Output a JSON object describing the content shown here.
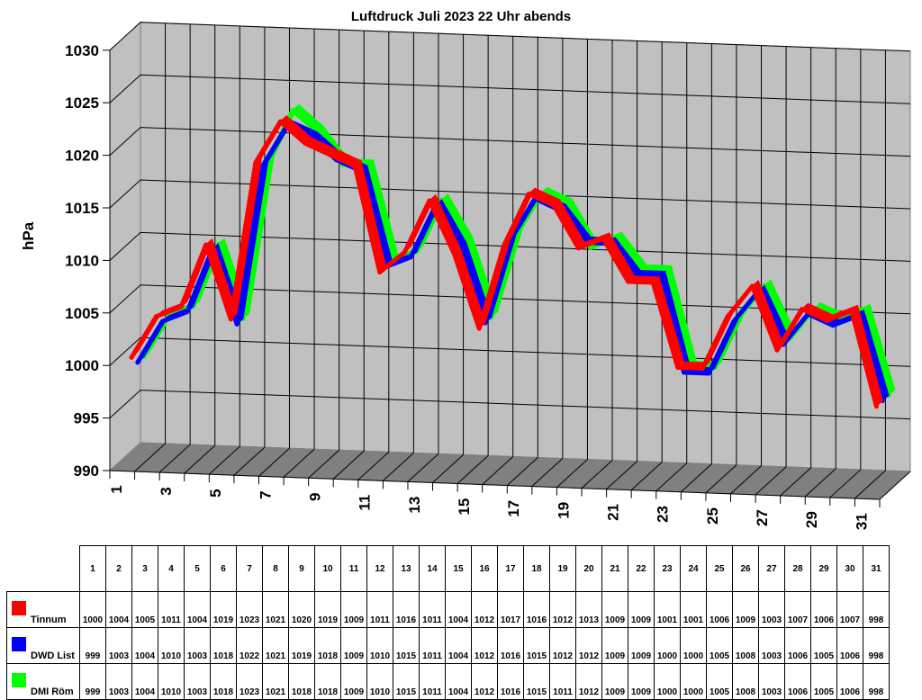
{
  "title": "Luftdruck Juli 2023 22 Uhr abends",
  "y_axis_label": "hPa",
  "colors": {
    "wall": "#c0c0c0",
    "floor": "#808080",
    "Tinnum": "#ff0000",
    "DWD List": "#0000ff",
    "DMI Röm": "#00ff00"
  },
  "table": {
    "header": [
      "1",
      "2",
      "3",
      "4",
      "5",
      "6",
      "7",
      "8",
      "9",
      "10",
      "11",
      "12",
      "13",
      "14",
      "15",
      "16",
      "17",
      "18",
      "19",
      "20",
      "21",
      "22",
      "23",
      "24",
      "25",
      "26",
      "27",
      "28",
      "29",
      "30",
      "31"
    ],
    "rows": [
      {
        "name": "Tinnum",
        "color": "#ff0000",
        "values": [
          "1000",
          "1004",
          "1005",
          "1011",
          "1004",
          "1019",
          "1023",
          "1021",
          "1020",
          "1019",
          "1009",
          "1011",
          "1016",
          "1011",
          "1004",
          "1012",
          "1017",
          "1016",
          "1012",
          "1013",
          "1009",
          "1009",
          "1001",
          "1001",
          "1006",
          "1009",
          "1003",
          "1007",
          "1006",
          "1007",
          "998"
        ]
      },
      {
        "name": "DWD List",
        "color": "#0000ff",
        "values": [
          "999",
          "1003",
          "1004",
          "1010",
          "1003",
          "1018",
          "1022",
          "1021",
          "1019",
          "1018",
          "1009",
          "1010",
          "1015",
          "1011",
          "1004",
          "1012",
          "1016",
          "1015",
          "1012",
          "1012",
          "1009",
          "1009",
          "1000",
          "1000",
          "1005",
          "1008",
          "1003",
          "1006",
          "1005",
          "1006",
          "998"
        ]
      },
      {
        "name": "DMI Röm",
        "color": "#00ff00",
        "values": [
          "999",
          "1003",
          "1004",
          "1010",
          "1003",
          "1018",
          "1023",
          "1021",
          "1018",
          "1018",
          "1009",
          "1010",
          "1015",
          "1011",
          "1004",
          "1012",
          "1016",
          "1015",
          "1011",
          "1012",
          "1009",
          "1009",
          "1000",
          "1000",
          "1005",
          "1008",
          "1003",
          "1006",
          "1005",
          "1006",
          "998"
        ]
      }
    ]
  },
  "chart_data": {
    "type": "line",
    "subtype": "3d-ribbon",
    "title": "Luftdruck Juli 2023 22 Uhr abends",
    "xlabel": "",
    "ylabel": "hPa",
    "ylim": [
      990,
      1030
    ],
    "yticks": [
      990,
      995,
      1000,
      1005,
      1010,
      1015,
      1020,
      1025,
      1030
    ],
    "x": [
      1,
      2,
      3,
      4,
      5,
      6,
      7,
      8,
      9,
      10,
      11,
      12,
      13,
      14,
      15,
      16,
      17,
      18,
      19,
      20,
      21,
      22,
      23,
      24,
      25,
      26,
      27,
      28,
      29,
      30,
      31
    ],
    "xtick_labels": [
      "1",
      "3",
      "5",
      "7",
      "9",
      "11",
      "13",
      "15",
      "17",
      "19",
      "21",
      "23",
      "25",
      "27",
      "29",
      "31"
    ],
    "grid": true,
    "legend_position": "data-table-below",
    "series": [
      {
        "name": "Tinnum",
        "color": "#ff0000",
        "values": [
          1000,
          1004,
          1005,
          1011,
          1004,
          1019,
          1023,
          1021,
          1020,
          1019,
          1009,
          1011,
          1016,
          1011,
          1004,
          1012,
          1017,
          1016,
          1012,
          1013,
          1009,
          1009,
          1001,
          1001,
          1006,
          1009,
          1003,
          1007,
          1006,
          1007,
          998
        ]
      },
      {
        "name": "DWD List",
        "color": "#0000ff",
        "values": [
          999,
          1003,
          1004,
          1010,
          1003,
          1018,
          1022,
          1021,
          1019,
          1018,
          1009,
          1010,
          1015,
          1011,
          1004,
          1012,
          1016,
          1015,
          1012,
          1012,
          1009,
          1009,
          1000,
          1000,
          1005,
          1008,
          1003,
          1006,
          1005,
          1006,
          998
        ]
      },
      {
        "name": "DMI Röm",
        "color": "#00ff00",
        "values": [
          999,
          1003,
          1004,
          1010,
          1003,
          1018,
          1023,
          1021,
          1018,
          1018,
          1009,
          1010,
          1015,
          1011,
          1004,
          1012,
          1016,
          1015,
          1011,
          1012,
          1009,
          1009,
          1000,
          1000,
          1005,
          1008,
          1003,
          1006,
          1005,
          1006,
          998
        ]
      }
    ]
  }
}
